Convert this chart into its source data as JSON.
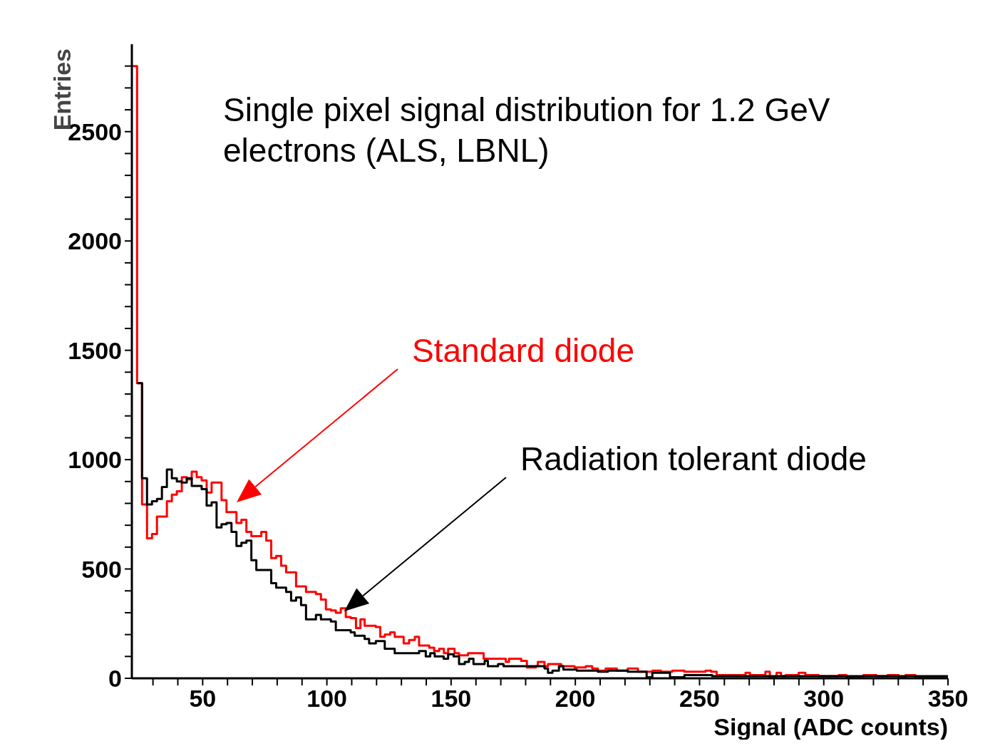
{
  "chart_data": {
    "type": "step",
    "title": "Single pixel signal distribution for 1.2 GeV electrons (ALS, LBNL)",
    "xlabel": "Signal (ADC counts)",
    "ylabel": "Entries",
    "xlim": [
      21.5,
      350
    ],
    "ylim": [
      0,
      2900
    ],
    "xticks": [
      {
        "value": 30,
        "label": null
      },
      {
        "value": 40,
        "label": null
      },
      50,
      {
        "value": 60,
        "label": null
      },
      {
        "value": 70,
        "label": null
      },
      {
        "value": 80,
        "label": null
      },
      {
        "value": 90,
        "label": null
      },
      100,
      {
        "value": 110,
        "label": null
      },
      {
        "value": 120,
        "label": null
      },
      {
        "value": 130,
        "label": null
      },
      {
        "value": 140,
        "label": null
      },
      150,
      {
        "value": 160,
        "label": null
      },
      {
        "value": 170,
        "label": null
      },
      {
        "value": 180,
        "label": null
      },
      {
        "value": 190,
        "label": null
      },
      200,
      {
        "value": 210,
        "label": null
      },
      {
        "value": 220,
        "label": null
      },
      {
        "value": 230,
        "label": null
      },
      {
        "value": 240,
        "label": null
      },
      250,
      {
        "value": 260,
        "label": null
      },
      {
        "value": 270,
        "label": null
      },
      {
        "value": 280,
        "label": null
      },
      {
        "value": 290,
        "label": null
      },
      300,
      {
        "value": 310,
        "label": null
      },
      {
        "value": 320,
        "label": null
      },
      {
        "value": 330,
        "label": null
      },
      {
        "value": 340,
        "label": null
      },
      350
    ],
    "yticks": [
      0,
      {
        "value": 100,
        "label": null
      },
      {
        "value": 200,
        "label": null
      },
      {
        "value": 300,
        "label": null
      },
      {
        "value": 400,
        "label": null
      },
      500,
      {
        "value": 600,
        "label": null
      },
      {
        "value": 700,
        "label": null
      },
      {
        "value": 800,
        "label": null
      },
      {
        "value": 900,
        "label": null
      },
      1000,
      {
        "value": 1100,
        "label": null
      },
      {
        "value": 1200,
        "label": null
      },
      {
        "value": 1300,
        "label": null
      },
      {
        "value": 1400,
        "label": null
      },
      1500,
      {
        "value": 1600,
        "label": null
      },
      {
        "value": 1700,
        "label": null
      },
      {
        "value": 1800,
        "label": null
      },
      {
        "value": 1900,
        "label": null
      },
      2000,
      {
        "value": 2100,
        "label": null
      },
      {
        "value": 2200,
        "label": null
      },
      {
        "value": 2300,
        "label": null
      },
      {
        "value": 2400,
        "label": null
      },
      2500,
      {
        "value": 2600,
        "label": null
      },
      {
        "value": 2700,
        "label": null
      },
      {
        "value": 2800,
        "label": null
      }
    ],
    "series": [
      {
        "name": "Standard diode",
        "color": "#ff0000",
        "x": [
          21.6,
          23.6,
          25.6,
          27.6,
          29.6,
          31.6,
          33.6,
          35.6,
          37.6,
          39.6,
          41.6,
          43.6,
          45.6,
          47.6,
          49.6,
          51.6,
          53.6,
          55.6,
          57.6,
          59.6,
          61.6,
          63.6,
          65.6,
          67.6,
          69.6,
          71.6,
          73.6,
          75.6,
          77.6,
          79.6,
          81.6,
          83.6,
          85.6,
          87.6,
          89.6,
          91.6,
          93.6,
          95.6,
          97.6,
          99.6,
          101.6,
          103.6,
          105.6,
          107.6,
          109.6,
          111.7,
          113.5,
          115.2,
          119.7,
          121.5,
          123.3,
          125.5,
          127.3,
          130.9,
          133.1,
          135.4,
          137.1,
          141.2,
          143.2,
          145.2,
          147.1,
          148.8,
          151.4,
          153.2,
          156.8,
          163.1,
          172.0,
          173.3,
          178.2,
          180.5,
          184.1,
          184.9,
          187.6,
          189.0,
          194.3,
          199.7,
          204.2,
          206.8,
          209.1,
          212.2,
          216.7,
          221.1,
          225.2,
          231.0,
          234.5,
          239.0,
          243.9,
          252.4,
          254.7,
          256.9,
          268.5,
          270.3,
          276.5,
          278.3,
          281.0,
          282.8,
          284.6,
          289.9,
          292.6,
          298.0,
          306.0,
          309.2,
          315.9,
          321.2,
          325.7,
          330.2,
          332.9,
          336.9,
          350
        ],
        "values": [
          2800,
          1350,
          795,
          640,
          660,
          740,
          740,
          810,
          840,
          855,
          920,
          910,
          945,
          920,
          905,
          850,
          895,
          895,
          815,
          760,
          760,
          710,
          725,
          670,
          650,
          650,
          670,
          630,
          550,
          560,
          515,
          485,
          485,
          420,
          420,
          395,
          395,
          385,
          360,
          315,
          310,
          300,
          320,
          280,
          275,
          230,
          270,
          240,
          235,
          190,
          200,
          210,
          190,
          160,
          175,
          190,
          150,
          140,
          125,
          135,
          115,
          135,
          115,
          105,
          115,
          90,
          75,
          90,
          80,
          50,
          55,
          75,
          55,
          65,
          55,
          50,
          55,
          45,
          35,
          45,
          35,
          45,
          30,
          35,
          30,
          35,
          30,
          35,
          30,
          15,
          25,
          15,
          30,
          5,
          25,
          10,
          15,
          25,
          15,
          10,
          15,
          5,
          15,
          10,
          15,
          5,
          15,
          5,
          5
        ]
      },
      {
        "name": "Radiation tolerant diode",
        "color": "#000000",
        "x": [
          23.6,
          25.6,
          27.6,
          29.6,
          31.6,
          33.6,
          35.6,
          37.6,
          39.6,
          41.6,
          43.6,
          45.6,
          47.6,
          49.6,
          51.6,
          53.6,
          55.6,
          57.6,
          59.6,
          61.6,
          63.6,
          65.6,
          67.6,
          69.6,
          71.6,
          73.6,
          75.6,
          77.6,
          79.6,
          81.6,
          83.6,
          85.6,
          87.6,
          89.6,
          91.6,
          93.6,
          95.6,
          97.6,
          99.6,
          101.6,
          103.6,
          105.6,
          107.6,
          109.6,
          111.2,
          115.2,
          117.0,
          119.7,
          123.3,
          127.3,
          137.1,
          139.8,
          141.6,
          143.4,
          147.0,
          148.8,
          151.0,
          153.2,
          155.5,
          157.2,
          159.0,
          163.5,
          164.8,
          168.9,
          171.1,
          187.6,
          189.0,
          190.8,
          193.4,
          195.2,
          200.6,
          209.1,
          213.1,
          221.1,
          228.7,
          231.0,
          238.1,
          243.9,
          255.1,
          350
        ],
        "values": [
          1350,
          915,
          795,
          810,
          820,
          875,
          955,
          915,
          900,
          895,
          915,
          880,
          880,
          865,
          790,
          805,
          690,
          705,
          710,
          670,
          605,
          620,
          630,
          540,
          495,
          495,
          495,
          435,
          415,
          415,
          395,
          355,
          370,
          335,
          270,
          270,
          290,
          270,
          270,
          260,
          220,
          220,
          220,
          210,
          195,
          180,
          160,
          170,
          135,
          115,
          125,
          100,
          115,
          100,
          90,
          110,
          100,
          65,
          75,
          90,
          65,
          80,
          55,
          65,
          55,
          45,
          25,
          35,
          55,
          40,
          35,
          30,
          35,
          30,
          5,
          25,
          5,
          15,
          10,
          10
        ]
      }
    ]
  }
}
